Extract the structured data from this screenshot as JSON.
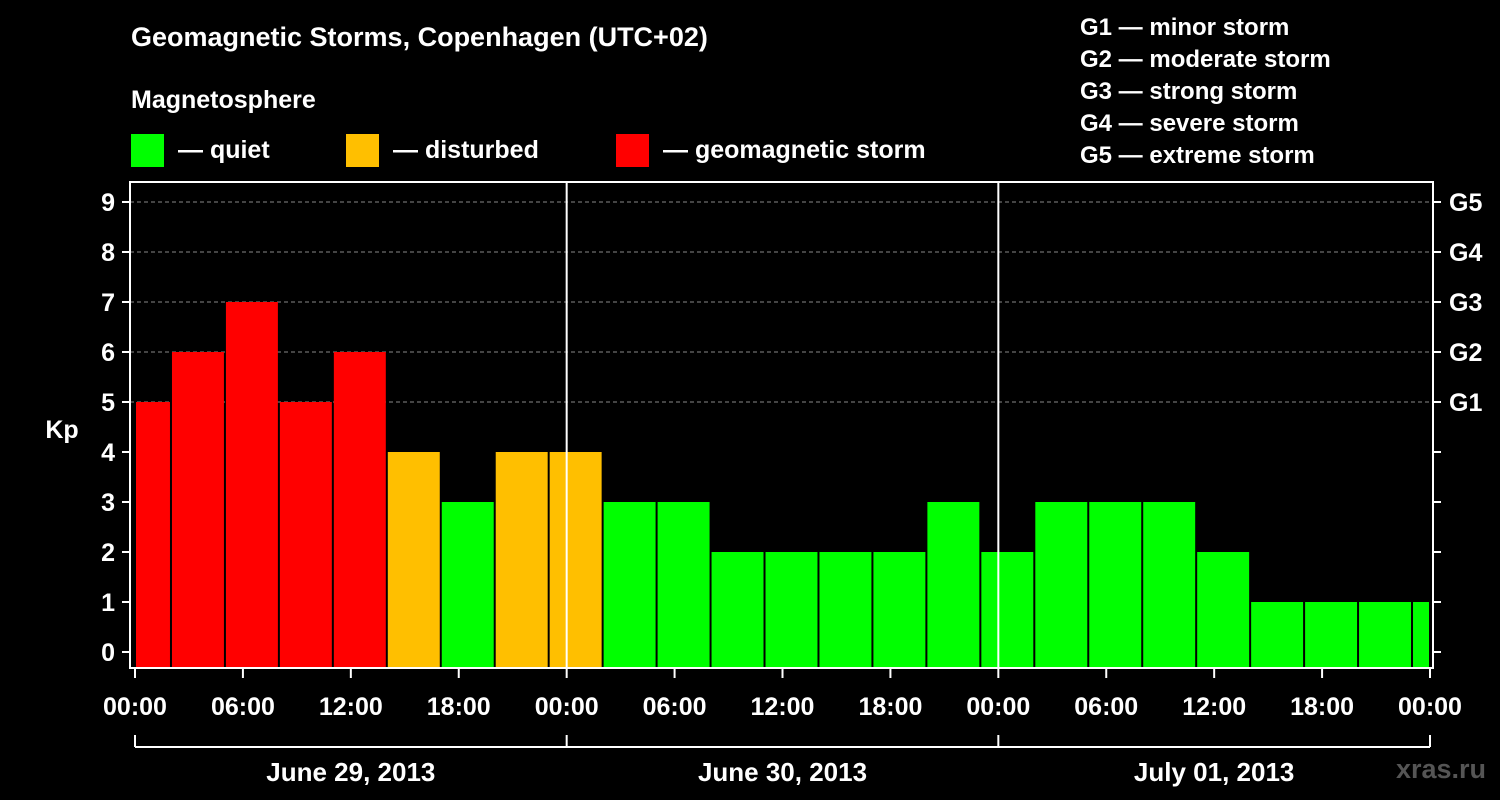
{
  "title": "Geomagnetic Storms, Copenhagen (UTC+02)",
  "subtitle": "Magnetosphere",
  "legend": [
    {
      "label": "— quiet",
      "color": "#00ff00"
    },
    {
      "label": "— disturbed",
      "color": "#ffbf00"
    },
    {
      "label": "— geomagnetic storm",
      "color": "#ff0000"
    }
  ],
  "scale": [
    "G1 — minor storm",
    "G2 — moderate storm",
    "G3 — strong storm",
    "G4 — severe storm",
    "G5 — extreme storm"
  ],
  "watermark": "xras.ru",
  "chart_data": {
    "type": "bar",
    "ylabel": "Kp",
    "ylim": [
      0,
      9
    ],
    "yticks": [
      "0",
      "1",
      "2",
      "3",
      "4",
      "5",
      "6",
      "7",
      "8",
      "9"
    ],
    "right_ticks": [
      {
        "value": 5,
        "label": "G1"
      },
      {
        "value": 6,
        "label": "G2"
      },
      {
        "value": 7,
        "label": "G3"
      },
      {
        "value": 8,
        "label": "G4"
      },
      {
        "value": 9,
        "label": "G5"
      }
    ],
    "x_hours_range": [
      0,
      72
    ],
    "xticks": [
      "00:00",
      "06:00",
      "12:00",
      "18:00",
      "00:00",
      "06:00",
      "12:00",
      "18:00",
      "00:00",
      "06:00",
      "12:00",
      "18:00",
      "00:00"
    ],
    "days": [
      "June 29, 2013",
      "June 30, 2013",
      "July 01, 2013"
    ],
    "grid": "dashed horizontal at 5-9",
    "colors": {
      "quiet": "#00ff00",
      "disturbed": "#ffbf00",
      "storm": "#ff0000"
    },
    "bars": [
      {
        "start": 0,
        "end": 2,
        "value": 5,
        "level": "storm"
      },
      {
        "start": 2,
        "end": 5,
        "value": 6,
        "level": "storm"
      },
      {
        "start": 5,
        "end": 8,
        "value": 7,
        "level": "storm"
      },
      {
        "start": 8,
        "end": 11,
        "value": 5,
        "level": "storm"
      },
      {
        "start": 11,
        "end": 14,
        "value": 6,
        "level": "storm"
      },
      {
        "start": 14,
        "end": 17,
        "value": 4,
        "level": "disturbed"
      },
      {
        "start": 17,
        "end": 20,
        "value": 3,
        "level": "quiet"
      },
      {
        "start": 20,
        "end": 23,
        "value": 4,
        "level": "disturbed"
      },
      {
        "start": 23,
        "end": 26,
        "value": 4,
        "level": "disturbed"
      },
      {
        "start": 26,
        "end": 29,
        "value": 3,
        "level": "quiet"
      },
      {
        "start": 29,
        "end": 32,
        "value": 3,
        "level": "quiet"
      },
      {
        "start": 32,
        "end": 35,
        "value": 2,
        "level": "quiet"
      },
      {
        "start": 35,
        "end": 38,
        "value": 2,
        "level": "quiet"
      },
      {
        "start": 38,
        "end": 41,
        "value": 2,
        "level": "quiet"
      },
      {
        "start": 41,
        "end": 44,
        "value": 2,
        "level": "quiet"
      },
      {
        "start": 44,
        "end": 47,
        "value": 3,
        "level": "quiet"
      },
      {
        "start": 47,
        "end": 50,
        "value": 2,
        "level": "quiet"
      },
      {
        "start": 50,
        "end": 53,
        "value": 3,
        "level": "quiet"
      },
      {
        "start": 53,
        "end": 56,
        "value": 3,
        "level": "quiet"
      },
      {
        "start": 56,
        "end": 59,
        "value": 3,
        "level": "quiet"
      },
      {
        "start": 59,
        "end": 62,
        "value": 2,
        "level": "quiet"
      },
      {
        "start": 62,
        "end": 65,
        "value": 1,
        "level": "quiet"
      },
      {
        "start": 65,
        "end": 68,
        "value": 1,
        "level": "quiet"
      },
      {
        "start": 68,
        "end": 71,
        "value": 1,
        "level": "quiet"
      },
      {
        "start": 71,
        "end": 72,
        "value": 1,
        "level": "quiet"
      }
    ]
  }
}
